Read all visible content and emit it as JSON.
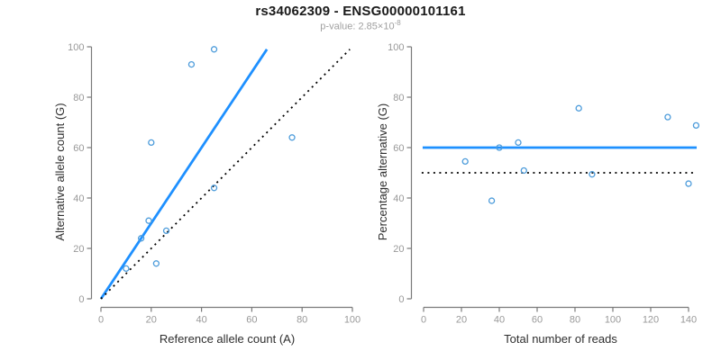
{
  "header": {
    "title": "rs34062309 - ENSG00000101161",
    "p_value_text": "p-value: 2.85×10",
    "p_value_exponent": "-8"
  },
  "colors": {
    "regression_blue": "#1E90FF",
    "point_blue": "#4D9CDB",
    "dotted_black": "#000000",
    "axis_gray": "#7a7a7a",
    "tick_label_gray": "#999999",
    "axis_title_dark": "#2e2e2e",
    "subtitle_gray": "#a0a0a0"
  },
  "chart_data": [
    {
      "type": "scatter",
      "name": "allele-counts",
      "xlabel": "Reference allele count (A)",
      "ylabel": "Alternative allele count (G)",
      "xlim": [
        0,
        100
      ],
      "ylim": [
        0,
        100
      ],
      "x_ticks": [
        0,
        20,
        40,
        60,
        80,
        100
      ],
      "y_ticks": [
        0,
        20,
        40,
        60,
        80,
        100
      ],
      "grid": false,
      "legend": "none",
      "points": [
        [
          10,
          12
        ],
        [
          16,
          24
        ],
        [
          19,
          31
        ],
        [
          22,
          14
        ],
        [
          26,
          27
        ],
        [
          20,
          62
        ],
        [
          36,
          93
        ],
        [
          45,
          99
        ],
        [
          45,
          44
        ],
        [
          76,
          64
        ]
      ],
      "lines": [
        {
          "name": "regression-line",
          "style": "solid",
          "color_key": "regression_blue",
          "x1": 0,
          "y1": 0,
          "x2": 66,
          "y2": 99
        },
        {
          "name": "identity-line",
          "style": "dotted",
          "color_key": "dotted_black",
          "x1": 0,
          "y1": 0,
          "x2": 99,
          "y2": 99
        }
      ]
    },
    {
      "type": "scatter",
      "name": "percentage-vs-reads",
      "xlabel": "Total number of reads",
      "ylabel": "Percentage alternative (G)",
      "xlim": [
        0,
        145
      ],
      "ylim": [
        0,
        100
      ],
      "x_ticks": [
        0,
        20,
        40,
        60,
        80,
        100,
        120,
        140
      ],
      "y_ticks": [
        0,
        20,
        40,
        60,
        80,
        100
      ],
      "grid": false,
      "legend": "none",
      "points": [
        [
          22,
          54.5
        ],
        [
          40,
          60
        ],
        [
          50,
          62
        ],
        [
          36,
          38.9
        ],
        [
          53,
          50.9
        ],
        [
          82,
          75.6
        ],
        [
          129,
          72.1
        ],
        [
          144,
          68.8
        ],
        [
          89,
          49.4
        ],
        [
          140,
          45.7
        ]
      ],
      "lines": [
        {
          "name": "mean-percentage-line",
          "style": "solid",
          "color_key": "regression_blue",
          "hy": 60,
          "x1": -0.5,
          "x2": 144.3
        },
        {
          "name": "expected-percentage-line",
          "style": "dotted",
          "color_key": "dotted_black",
          "hy": 50,
          "x1": -1,
          "x2": 144.3
        }
      ]
    }
  ]
}
